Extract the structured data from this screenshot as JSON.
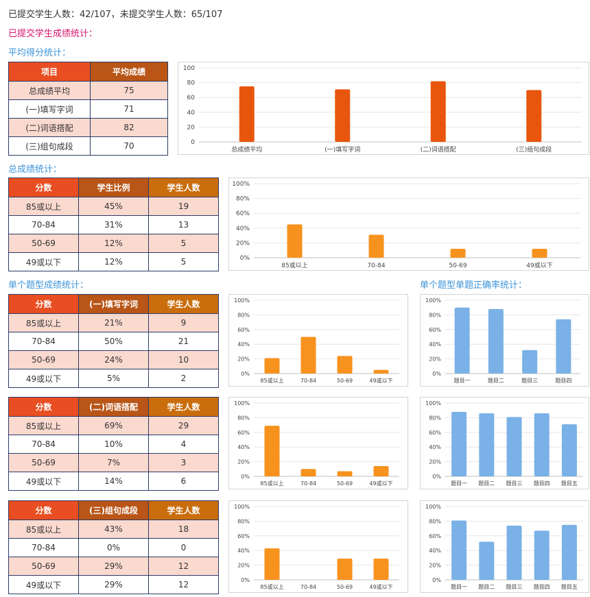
{
  "summary": "已提交学生人数：42/107，未提交学生人数：65/107",
  "section_title": "已提交学生成绩统计：",
  "avg_section": {
    "title": "平均得分统计：",
    "headers": [
      "项目",
      "平均成绩"
    ],
    "rows": [
      [
        "总成绩平均",
        "75"
      ],
      [
        "(一)填写字词",
        "71"
      ],
      [
        "(二)词语搭配",
        "82"
      ],
      [
        "(三)组句成段",
        "70"
      ]
    ]
  },
  "total_section": {
    "title": "总成绩统计：",
    "headers": [
      "分数",
      "学生比例",
      "学生人数"
    ],
    "rows": [
      [
        "85或以上",
        "45%",
        "19"
      ],
      [
        "70-84",
        "31%",
        "13"
      ],
      [
        "50-69",
        "12%",
        "5"
      ],
      [
        "49或以下",
        "12%",
        "5"
      ]
    ]
  },
  "question_section": {
    "title": "单个题型成绩统计：",
    "accuracy_title": "单个题型单题正确率统计：",
    "tables": [
      {
        "headers": [
          "分数",
          "(一)填写字词",
          "学生人数"
        ],
        "rows": [
          [
            "85或以上",
            "21%",
            "9"
          ],
          [
            "70-84",
            "50%",
            "21"
          ],
          [
            "50-69",
            "24%",
            "10"
          ],
          [
            "49或以下",
            "5%",
            "2"
          ]
        ]
      },
      {
        "headers": [
          "分数",
          "(二)词语搭配",
          "学生人数"
        ],
        "rows": [
          [
            "85或以上",
            "69%",
            "29"
          ],
          [
            "70-84",
            "10%",
            "4"
          ],
          [
            "50-69",
            "7%",
            "3"
          ],
          [
            "49或以下",
            "14%",
            "6"
          ]
        ]
      },
      {
        "headers": [
          "分数",
          "(三)组句成段",
          "学生人数"
        ],
        "rows": [
          [
            "85或以上",
            "43%",
            "18"
          ],
          [
            "70-84",
            "0%",
            "0"
          ],
          [
            "50-69",
            "29%",
            "12"
          ],
          [
            "49或以下",
            "29%",
            "12"
          ]
        ]
      }
    ]
  },
  "colors": {
    "avg_bar": "#e8560e",
    "dist_bar": "#f7921e",
    "acc_bar": "#7ab1e6",
    "pink_heading": "#d6156f",
    "blue_heading": "#3d93d8"
  },
  "chart_data": [
    {
      "id": "avg",
      "type": "bar",
      "categories": [
        "总成绩平均",
        "(一)填写字词",
        "(二)词语搭配",
        "(三)组句成段"
      ],
      "values": [
        75,
        71,
        82,
        70
      ],
      "ylim": [
        0,
        100
      ],
      "yticks": [
        "0",
        "20",
        "40",
        "60",
        "80",
        "100"
      ],
      "grid": true
    },
    {
      "id": "total",
      "type": "bar",
      "categories": [
        "85或以上",
        "70-84",
        "50-69",
        "49或以下"
      ],
      "values": [
        45,
        31,
        12,
        12
      ],
      "ylim": [
        0,
        100
      ],
      "yticks": [
        "0%",
        "20%",
        "40%",
        "60%",
        "80%",
        "100%"
      ],
      "grid": true
    },
    {
      "id": "q1",
      "type": "bar",
      "categories": [
        "85或以上",
        "70-84",
        "50-69",
        "49或以下"
      ],
      "values": [
        21,
        50,
        24,
        5
      ],
      "ylim": [
        0,
        100
      ],
      "yticks": [
        "0%",
        "20%",
        "40%",
        "60%",
        "80%",
        "100%"
      ],
      "grid": true
    },
    {
      "id": "q1acc",
      "type": "bar",
      "categories": [
        "题目一",
        "题目二",
        "题目三",
        "题目四"
      ],
      "values": [
        90,
        88,
        32,
        74
      ],
      "ylim": [
        0,
        100
      ],
      "yticks": [
        "0%",
        "20%",
        "40%",
        "60%",
        "80%",
        "100%"
      ],
      "grid": true
    },
    {
      "id": "q2",
      "type": "bar",
      "categories": [
        "85或以上",
        "70-84",
        "50-69",
        "49或以下"
      ],
      "values": [
        69,
        10,
        7,
        14
      ],
      "ylim": [
        0,
        100
      ],
      "yticks": [
        "0%",
        "20%",
        "40%",
        "60%",
        "80%",
        "100%"
      ],
      "grid": true
    },
    {
      "id": "q2acc",
      "type": "bar",
      "categories": [
        "题目一",
        "题目二",
        "题目三",
        "题目四",
        "题目五"
      ],
      "values": [
        88,
        86,
        81,
        86,
        71
      ],
      "ylim": [
        0,
        100
      ],
      "yticks": [
        "0%",
        "20%",
        "40%",
        "60%",
        "80%",
        "100%"
      ],
      "grid": true
    },
    {
      "id": "q3",
      "type": "bar",
      "categories": [
        "85或以上",
        "70-84",
        "50-69",
        "49或以下"
      ],
      "values": [
        43,
        0,
        29,
        29
      ],
      "ylim": [
        0,
        100
      ],
      "yticks": [
        "0%",
        "20%",
        "40%",
        "60%",
        "80%",
        "100%"
      ],
      "grid": true
    },
    {
      "id": "q3acc",
      "type": "bar",
      "categories": [
        "题目一",
        "题目二",
        "题目三",
        "题目四",
        "题目五"
      ],
      "values": [
        81,
        52,
        74,
        67,
        75
      ],
      "ylim": [
        0,
        100
      ],
      "yticks": [
        "0%",
        "20%",
        "40%",
        "60%",
        "80%",
        "100%"
      ],
      "grid": true
    }
  ]
}
